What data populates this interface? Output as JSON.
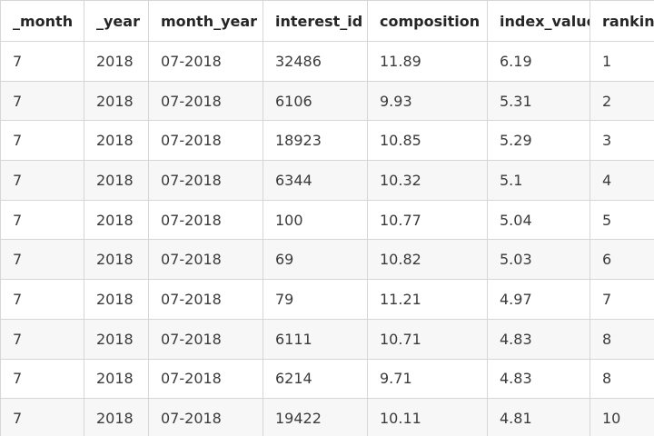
{
  "table": {
    "columns": [
      "_month",
      "_year",
      "month_year",
      "interest_id",
      "composition",
      "index_value",
      "ranking"
    ],
    "rows": [
      [
        "7",
        "2018",
        "07-2018",
        "32486",
        "11.89",
        "6.19",
        "1"
      ],
      [
        "7",
        "2018",
        "07-2018",
        "6106",
        "9.93",
        "5.31",
        "2"
      ],
      [
        "7",
        "2018",
        "07-2018",
        "18923",
        "10.85",
        "5.29",
        "3"
      ],
      [
        "7",
        "2018",
        "07-2018",
        "6344",
        "10.32",
        "5.1",
        "4"
      ],
      [
        "7",
        "2018",
        "07-2018",
        "100",
        "10.77",
        "5.04",
        "5"
      ],
      [
        "7",
        "2018",
        "07-2018",
        "69",
        "10.82",
        "5.03",
        "6"
      ],
      [
        "7",
        "2018",
        "07-2018",
        "79",
        "11.21",
        "4.97",
        "7"
      ],
      [
        "7",
        "2018",
        "07-2018",
        "6111",
        "10.71",
        "4.83",
        "8"
      ],
      [
        "7",
        "2018",
        "07-2018",
        "6214",
        "9.71",
        "4.83",
        "8"
      ],
      [
        "7",
        "2018",
        "07-2018",
        "19422",
        "10.11",
        "4.81",
        "10"
      ]
    ]
  },
  "colors": {
    "border": "#d6d6d6",
    "row_alt": "#f7f7f7",
    "text": "#3b3b3b",
    "header_text": "#262626"
  }
}
